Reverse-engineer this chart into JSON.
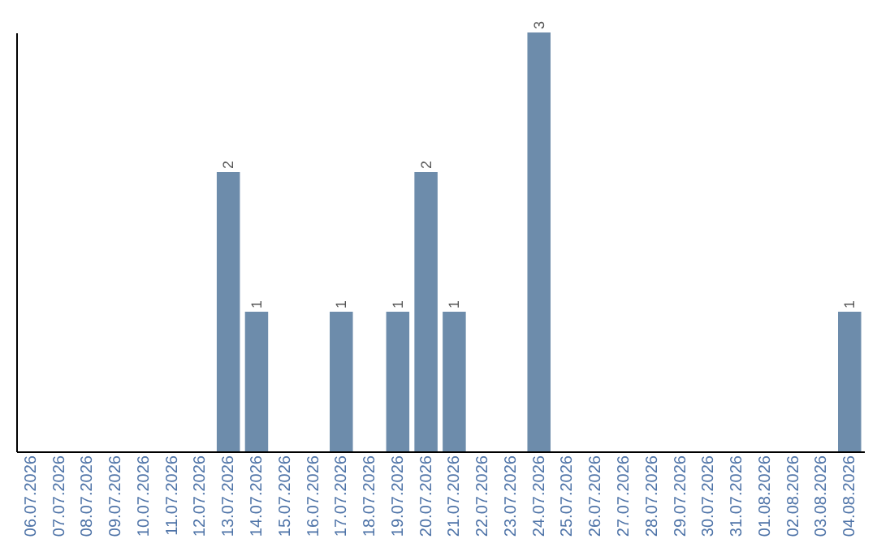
{
  "chart_data": {
    "type": "bar",
    "categories": [
      "06.07.2026",
      "07.07.2026",
      "08.07.2026",
      "09.07.2026",
      "10.07.2026",
      "11.07.2026",
      "12.07.2026",
      "13.07.2026",
      "14.07.2026",
      "15.07.2026",
      "16.07.2026",
      "17.07.2026",
      "18.07.2026",
      "19.07.2026",
      "20.07.2026",
      "21.07.2026",
      "22.07.2026",
      "23.07.2026",
      "24.07.2026",
      "25.07.2026",
      "26.07.2026",
      "27.07.2026",
      "28.07.2026",
      "29.07.2026",
      "30.07.2026",
      "31.07.2026",
      "01.08.2026",
      "02.08.2026",
      "03.08.2026",
      "04.08.2026"
    ],
    "values": [
      0,
      0,
      0,
      0,
      0,
      0,
      0,
      2,
      1,
      0,
      0,
      1,
      0,
      1,
      2,
      1,
      0,
      0,
      3,
      0,
      0,
      0,
      0,
      0,
      0,
      0,
      0,
      0,
      0,
      1
    ],
    "value_labels": [
      null,
      null,
      null,
      null,
      null,
      null,
      null,
      "2",
      "1",
      null,
      null,
      "1",
      null,
      "1",
      "2",
      "1",
      null,
      null,
      "3",
      null,
      null,
      null,
      null,
      null,
      null,
      null,
      null,
      null,
      null,
      "1"
    ],
    "color": "#6d8cab",
    "grid": false,
    "tick_labels": "x"
  }
}
